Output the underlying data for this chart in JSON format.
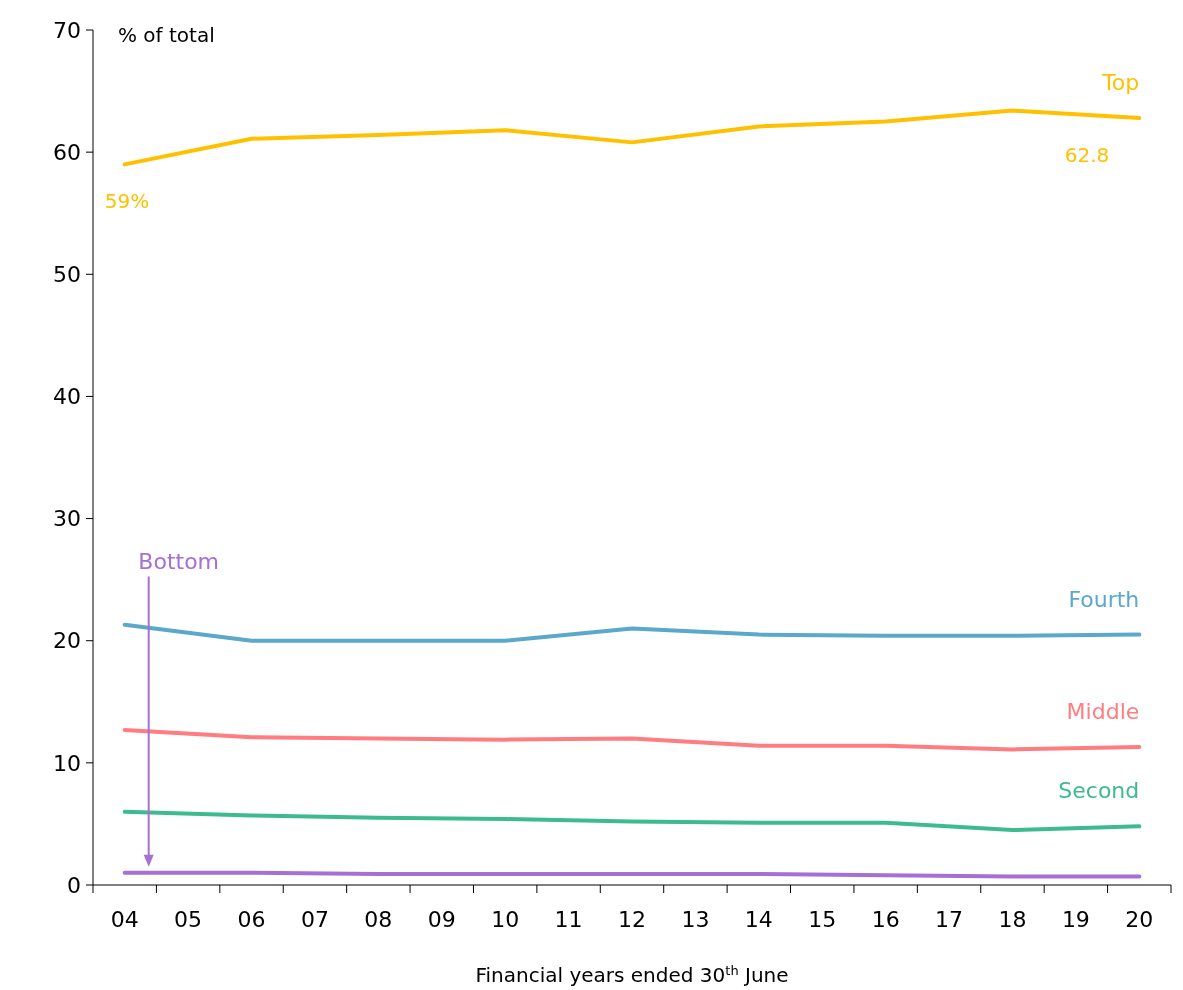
{
  "chart_data": {
    "type": "line",
    "ylabel": "% of total",
    "xlabel": "Financial years ended 30$^{th}$ June",
    "categories": [
      "04",
      "05",
      "06",
      "07",
      "08",
      "09",
      "10",
      "11",
      "12",
      "13",
      "14",
      "15",
      "16",
      "17",
      "18",
      "19",
      "20"
    ],
    "ylim": [
      0,
      70
    ],
    "yticks": [
      0,
      10,
      20,
      30,
      40,
      50,
      60,
      70
    ],
    "grid": false,
    "marker": "none",
    "line_style": "solid",
    "series": [
      {
        "name": "Top",
        "color": "#ffc000",
        "x": [
          "04",
          "06",
          "08",
          "10",
          "12",
          "14",
          "16",
          "18",
          "20"
        ],
        "values": [
          59,
          61.1,
          61.4,
          61.8,
          60.8,
          62.1,
          62.5,
          63.4,
          62.8
        ]
      },
      {
        "name": "Fourth",
        "color": "#5ba8cb",
        "x": [
          "04",
          "06",
          "08",
          "10",
          "12",
          "14",
          "16",
          "18",
          "20"
        ],
        "values": [
          21.3,
          20.0,
          20.0,
          20.0,
          21.0,
          20.5,
          20.4,
          20.4,
          20.5
        ]
      },
      {
        "name": "Middle",
        "color": "#ff7c80",
        "x": [
          "04",
          "06",
          "08",
          "10",
          "12",
          "14",
          "16",
          "18",
          "20"
        ],
        "values": [
          12.7,
          12.1,
          12.0,
          11.9,
          12.0,
          11.4,
          11.4,
          11.1,
          11.3
        ]
      },
      {
        "name": "Second",
        "color": "#3dbb8e",
        "x": [
          "04",
          "06",
          "08",
          "10",
          "12",
          "14",
          "16",
          "18",
          "20"
        ],
        "values": [
          6.0,
          5.7,
          5.5,
          5.4,
          5.2,
          5.1,
          5.1,
          4.5,
          4.8
        ]
      },
      {
        "name": "Bottom",
        "color": "#a66fd6",
        "x": [
          "04",
          "06",
          "08",
          "10",
          "12",
          "14",
          "16",
          "18",
          "20"
        ],
        "values": [
          1.0,
          1.0,
          0.9,
          0.9,
          0.9,
          0.9,
          0.8,
          0.7,
          0.7
        ]
      }
    ],
    "annotations": [
      {
        "text": "59%",
        "x": "04",
        "y": 59
      },
      {
        "text": "62.8",
        "x": "20",
        "y": 62.8
      }
    ]
  }
}
